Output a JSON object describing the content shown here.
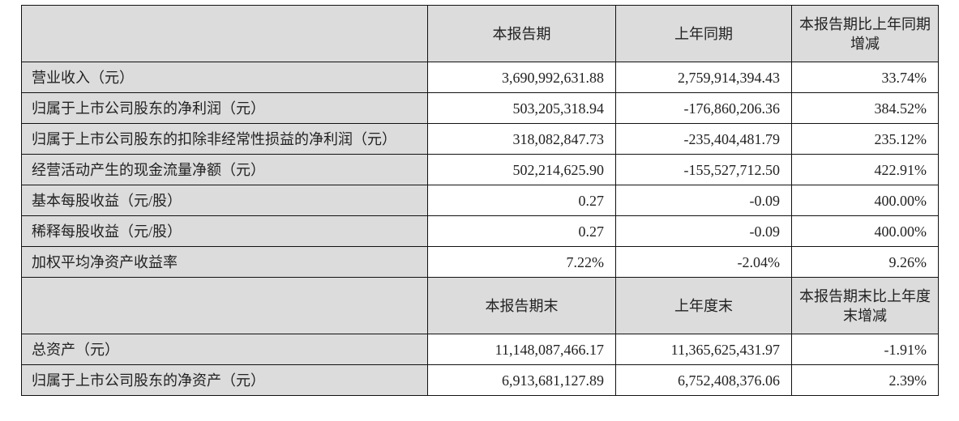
{
  "header1": [
    "",
    "本报告期",
    "上年同期",
    "本报告期比上年同期增减"
  ],
  "rows1": [
    {
      "label": "营业收入（元）",
      "current": "3,690,992,631.88",
      "prior": "2,759,914,394.43",
      "change": "33.74%"
    },
    {
      "label": "归属于上市公司股东的净利润（元）",
      "current": "503,205,318.94",
      "prior": "-176,860,206.36",
      "change": "384.52%"
    },
    {
      "label": "归属于上市公司股东的扣除非经常性损益的净利润（元）",
      "current": "318,082,847.73",
      "prior": "-235,404,481.79",
      "change": "235.12%"
    },
    {
      "label": "经营活动产生的现金流量净额（元）",
      "current": "502,214,625.90",
      "prior": "-155,527,712.50",
      "change": "422.91%"
    },
    {
      "label": "基本每股收益（元/股）",
      "current": "0.27",
      "prior": "-0.09",
      "change": "400.00%"
    },
    {
      "label": "稀释每股收益（元/股）",
      "current": "0.27",
      "prior": "-0.09",
      "change": "400.00%"
    },
    {
      "label": "加权平均净资产收益率",
      "current": "7.22%",
      "prior": "-2.04%",
      "change": "9.26%"
    }
  ],
  "header2": [
    "",
    "本报告期末",
    "上年度末",
    "本报告期末比上年度末增减"
  ],
  "rows2": [
    {
      "label": "总资产（元）",
      "current": "11,148,087,466.17",
      "prior": "11,365,625,431.97",
      "change": "-1.91%"
    },
    {
      "label": "归属于上市公司股东的净资产（元）",
      "current": "6,913,681,127.89",
      "prior": "6,752,408,376.06",
      "change": "2.39%"
    }
  ]
}
